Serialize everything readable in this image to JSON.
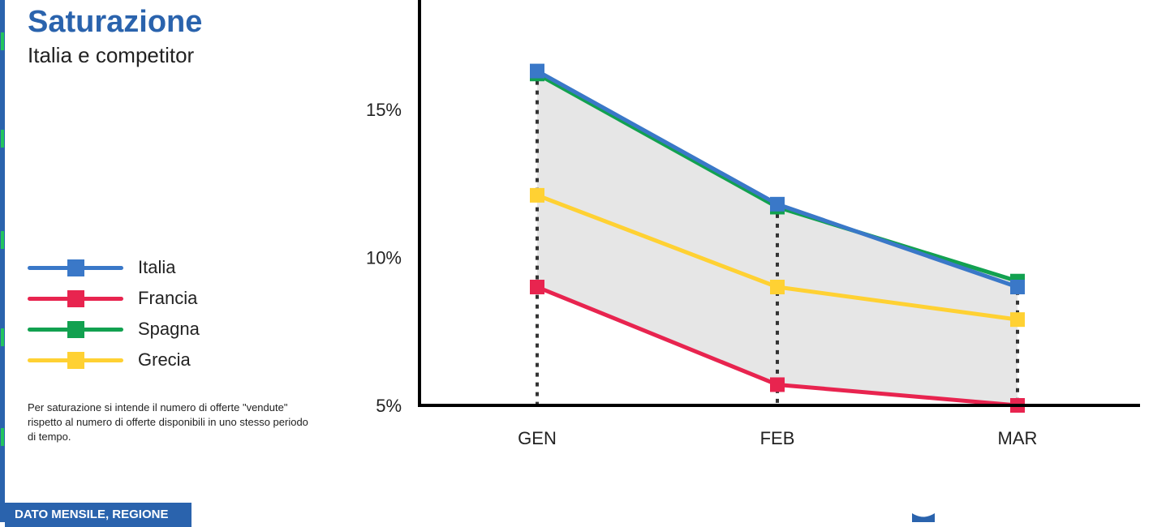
{
  "header": {
    "title": "Saturazione",
    "subtitle": "Italia e competitor"
  },
  "legend": [
    {
      "label": "Italia",
      "color": "#3a78c8"
    },
    {
      "label": "Francia",
      "color": "#e8244f"
    },
    {
      "label": "Spagna",
      "color": "#12a150"
    },
    {
      "label": "Grecia",
      "color": "#ffd133"
    }
  ],
  "note": "Per saturazione si intende il numero di offerte \"vendute\" rispetto al numero di offerte disponibili in uno stesso periodo di tempo.",
  "badge": "DATO MENSILE, REGIONE",
  "colors": {
    "accent": "#2a63ad",
    "band": "#e6e6e6"
  },
  "chart_data": {
    "type": "line",
    "categories": [
      "GEN",
      "FEB",
      "MAR"
    ],
    "y_ticks": [
      5,
      10,
      15
    ],
    "y_tick_labels": [
      "5%",
      "10%",
      "15%"
    ],
    "ylim": [
      5,
      18.7
    ],
    "series": [
      {
        "name": "Spagna",
        "values": [
          16.2,
          11.7,
          9.2
        ],
        "color": "#12a150"
      },
      {
        "name": "Italia",
        "values": [
          16.3,
          11.8,
          9.0
        ],
        "color": "#3a78c8"
      },
      {
        "name": "Grecia",
        "values": [
          12.1,
          9.0,
          7.9
        ],
        "color": "#ffd133"
      },
      {
        "name": "Francia",
        "values": [
          9.0,
          5.7,
          5.0
        ],
        "color": "#e8244f"
      }
    ],
    "shaded_band": "range between highest and lowest series",
    "grid": false
  }
}
